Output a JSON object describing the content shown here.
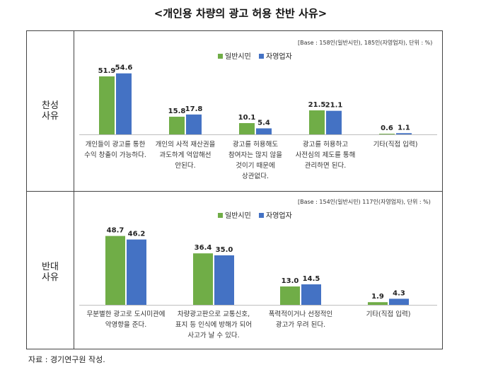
{
  "title": "<개인용 차량의 광고 허용 찬반 사유>",
  "source": "자료 : 경기연구원 작성.",
  "colors": {
    "general": "#70ad47",
    "self": "#4472c4"
  },
  "legend": [
    "일반시민",
    "자영업자"
  ],
  "chart_data": [
    {
      "type": "bar",
      "row_label": [
        "찬성",
        "사유"
      ],
      "base_note": "[Base : 158인(일반시민), 185인(자영업자), 단위 : %)",
      "categories": [
        [
          "개인들이 광고를 통한",
          "수익 창출이 가능하다."
        ],
        [
          "개인의 사적 재산권을",
          "과도하게 억압해선",
          "안된다."
        ],
        [
          "광고를 허용해도",
          "참여자는 많지 않을",
          "것이기 때문에",
          "상관없다."
        ],
        [
          "광고를 허용하고",
          "사전심의 제도를 통해",
          "관리하면 된다."
        ],
        [
          "기타(직접 입력)"
        ]
      ],
      "series": [
        {
          "name": "일반시민",
          "values": [
            51.9,
            15.8,
            10.1,
            21.5,
            0.6
          ]
        },
        {
          "name": "자영업자",
          "values": [
            54.6,
            17.8,
            5.4,
            21.1,
            1.1
          ]
        }
      ]
    },
    {
      "type": "bar",
      "row_label": [
        "반대",
        "사유"
      ],
      "base_note": "[Base : 154인(일반시민) 117인(자영업자), 단위 : %)",
      "categories": [
        [
          "무분별한 광고로 도시미관에",
          "악영향을 준다."
        ],
        [
          "차량광고판으로 교통신호,",
          "표지 등 인식에 방해가 되어",
          "사고가 날 수 있다."
        ],
        [
          "폭력적이거나 선정적인",
          "광고가 우려 된다."
        ],
        [
          "기타(직접 입력)"
        ]
      ],
      "series": [
        {
          "name": "일반시민",
          "values": [
            48.7,
            36.4,
            13.0,
            1.9
          ]
        },
        {
          "name": "자영업자",
          "values": [
            46.2,
            35.0,
            14.5,
            4.3
          ]
        }
      ]
    }
  ]
}
